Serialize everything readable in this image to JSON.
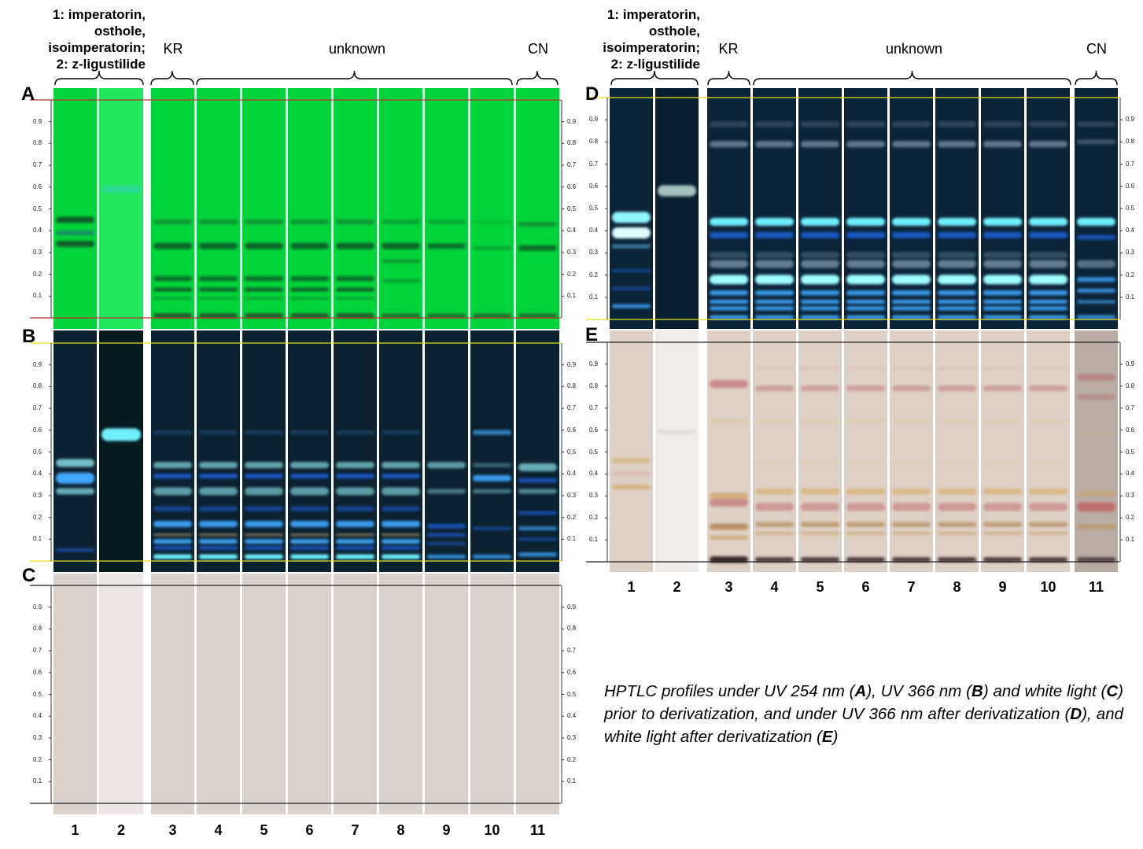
{
  "header": {
    "left_ref_lines": [
      "1: imperatorin, osthole,",
      "isoimperatorin;",
      "2: z-ligustilide"
    ],
    "right_ref_lines": [
      "1: imperatorin, osthole,",
      "isoimperatorin;",
      "2: z-ligustilide"
    ],
    "groups": {
      "kr": "KR",
      "unknown": "unknown",
      "cn": "CN"
    }
  },
  "plates": [
    {
      "label": "A",
      "condition": "UV 254 nm",
      "color": "#00d43a"
    },
    {
      "label": "B",
      "condition": "UV 366 nm",
      "color": "#0c2230"
    },
    {
      "label": "C",
      "condition": "white light",
      "color": "#d9d2cc"
    },
    {
      "label": "D",
      "condition": "UV 366 nm after derivatization",
      "color": "#0c2438"
    },
    {
      "label": "E",
      "condition": "white light after derivatization",
      "color": "#ddd0c6"
    }
  ],
  "rf_ticks": [
    "0.1",
    "0.2",
    "0.3",
    "0.4",
    "0.5",
    "0.6",
    "0.7",
    "0.8",
    "0.9"
  ],
  "lanes": [
    "1",
    "2",
    "3",
    "4",
    "5",
    "6",
    "7",
    "8",
    "9",
    "10",
    "11"
  ],
  "caption": {
    "t1": "HPTLC profiles under UV 254 nm (",
    "A": "A",
    "t2": "), UV 366 nm (",
    "B": "B",
    "t3": ") and white light (",
    "C": "C",
    "t4": ") prior to derivatization, and under UV 366 nm after derivatization (",
    "D": "D",
    "t5": "), and white light after derivatization (",
    "E": "E",
    "t6": ")"
  }
}
